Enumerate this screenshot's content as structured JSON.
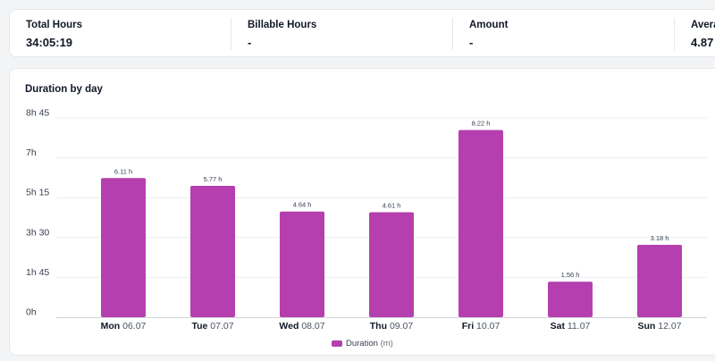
{
  "stats": [
    {
      "label": "Total Hours",
      "value": "34:05:19"
    },
    {
      "label": "Billable Hours",
      "value": "-"
    },
    {
      "label": "Amount",
      "value": "-"
    },
    {
      "label": "Avera",
      "value": "4.87"
    }
  ],
  "chart_title": "Duration by day",
  "colors": {
    "bar": "#b53fae",
    "grid": "#eceef1",
    "axis": "#d1d5db"
  },
  "legend": {
    "label": "Duration",
    "unit": "(m)"
  },
  "chart_data": {
    "type": "bar",
    "title": "Duration by day",
    "xlabel": "",
    "ylabel": "",
    "ylim": [
      0,
      8.75
    ],
    "y_ticks": [
      {
        "value": 0,
        "label": "0h"
      },
      {
        "value": 1.75,
        "label": "1h 45"
      },
      {
        "value": 3.5,
        "label": "3h 30"
      },
      {
        "value": 5.25,
        "label": "5h 15"
      },
      {
        "value": 7,
        "label": "7h"
      },
      {
        "value": 8.75,
        "label": "8h 45"
      }
    ],
    "categories": [
      {
        "day": "Mon",
        "date": "06.07"
      },
      {
        "day": "Tue",
        "date": "07.07"
      },
      {
        "day": "Wed",
        "date": "08.07"
      },
      {
        "day": "Thu",
        "date": "09.07"
      },
      {
        "day": "Fri",
        "date": "10.07"
      },
      {
        "day": "Sat",
        "date": "11.07"
      },
      {
        "day": "Sun",
        "date": "12.07"
      }
    ],
    "series": [
      {
        "name": "Duration",
        "values": [
          6.11,
          5.77,
          4.64,
          4.61,
          8.22,
          1.56,
          3.18
        ],
        "labels": [
          "6.11 h",
          "5.77 h",
          "4.64 h",
          "4.61 h",
          "8.22 h",
          "1.56 h",
          "3.18 h"
        ]
      }
    ],
    "grid": true,
    "legend_position": "bottom-center"
  }
}
